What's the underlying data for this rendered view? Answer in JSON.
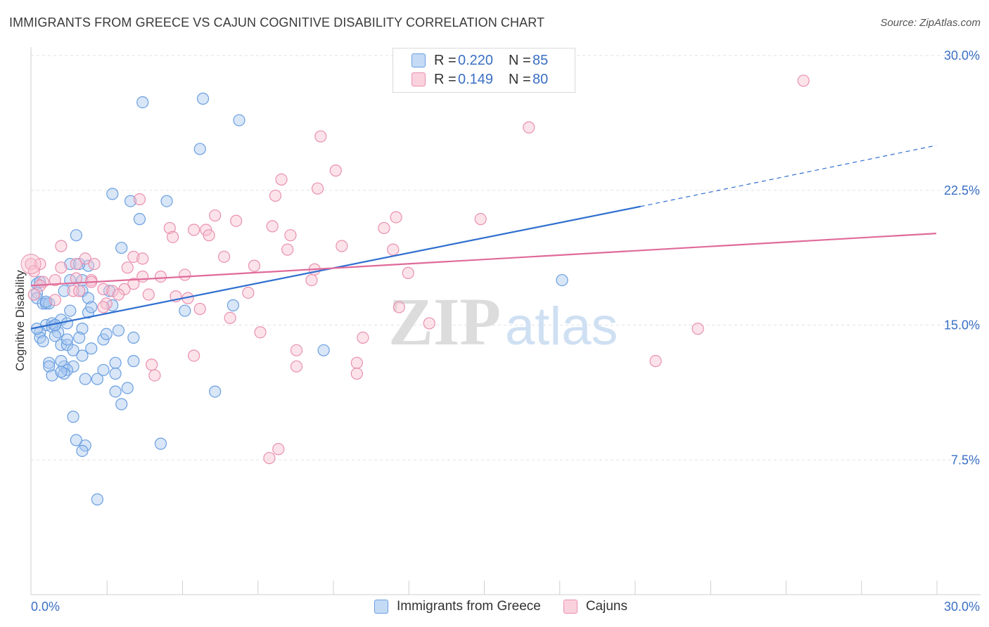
{
  "title": "IMMIGRANTS FROM GREECE VS CAJUN COGNITIVE DISABILITY CORRELATION CHART",
  "source": "Source: ZipAtlas.com",
  "watermark": {
    "zip": "ZIP",
    "atlas": "atlas"
  },
  "legend": {
    "rows": [
      {
        "r_label": "R =",
        "r_value": "0.220",
        "n_label": "N =",
        "n_value": "85",
        "color": "#a8c8f0",
        "border": "#6a9fe0"
      },
      {
        "r_label": "R =",
        "r_value": "0.149",
        "n_label": "N =",
        "n_value": "80",
        "color": "#f8c0d0",
        "border": "#e890b0"
      }
    ]
  },
  "bottom_legend": [
    {
      "label": "Immigrants from Greece",
      "color": "#a8c8f0",
      "border": "#6a9fe0"
    },
    {
      "label": "Cajuns",
      "color": "#f8c0d0",
      "border": "#e890b0"
    }
  ],
  "chart_data": {
    "type": "scatter",
    "title": "IMMIGRANTS FROM GREECE VS CAJUN COGNITIVE DISABILITY CORRELATION CHART",
    "xlabel": "",
    "ylabel": "Cognitive Disability",
    "xlim": [
      0,
      30
    ],
    "ylim": [
      0,
      30
    ],
    "x_tick_labels": [
      "0.0%",
      "30.0%"
    ],
    "y_ticks": [
      7.5,
      15.0,
      22.5,
      30.0
    ],
    "y_tick_labels": [
      "7.5%",
      "15.0%",
      "22.5%",
      "30.0%"
    ],
    "grid": true,
    "legend_position": "top-center",
    "series": [
      {
        "name": "Immigrants from Greece",
        "color": "#6a9fe0",
        "fill": "#a8c8f0",
        "trend": {
          "x": [
            0,
            20.2
          ],
          "y": [
            14.8,
            21.6
          ],
          "dashed_to": [
            30,
            25.0
          ],
          "color": "#2f6fcf"
        },
        "points": [
          [
            3.7,
            27.4
          ],
          [
            5.7,
            27.6
          ],
          [
            6.9,
            26.4
          ],
          [
            5.6,
            24.8
          ],
          [
            2.7,
            22.3
          ],
          [
            4.5,
            21.9
          ],
          [
            3.3,
            21.9
          ],
          [
            3.6,
            20.9
          ],
          [
            1.5,
            20.0
          ],
          [
            3.0,
            19.3
          ],
          [
            1.3,
            18.4
          ],
          [
            1.9,
            18.3
          ],
          [
            1.6,
            18.4
          ],
          [
            0.2,
            17.3
          ],
          [
            0.3,
            17.4
          ],
          [
            1.3,
            17.5
          ],
          [
            1.7,
            17.5
          ],
          [
            0.2,
            16.8
          ],
          [
            0.2,
            16.5
          ],
          [
            1.1,
            16.9
          ],
          [
            1.7,
            16.9
          ],
          [
            2.6,
            16.9
          ],
          [
            0.4,
            16.2
          ],
          [
            0.5,
            16.2
          ],
          [
            0.6,
            16.2
          ],
          [
            0.5,
            16.3
          ],
          [
            1.9,
            16.5
          ],
          [
            2.7,
            16.1
          ],
          [
            6.7,
            16.1
          ],
          [
            1.3,
            15.8
          ],
          [
            1.9,
            15.7
          ],
          [
            5.1,
            15.8
          ],
          [
            0.5,
            15.0
          ],
          [
            0.7,
            15.1
          ],
          [
            0.8,
            15.0
          ],
          [
            1.0,
            15.3
          ],
          [
            1.2,
            15.1
          ],
          [
            0.7,
            14.9
          ],
          [
            0.3,
            14.6
          ],
          [
            0.9,
            14.6
          ],
          [
            1.7,
            14.8
          ],
          [
            2.9,
            14.7
          ],
          [
            0.3,
            14.3
          ],
          [
            0.4,
            14.1
          ],
          [
            0.8,
            14.4
          ],
          [
            1.6,
            14.3
          ],
          [
            2.4,
            14.2
          ],
          [
            3.4,
            14.3
          ],
          [
            1.0,
            13.9
          ],
          [
            1.2,
            13.9
          ],
          [
            2.0,
            13.7
          ],
          [
            1.4,
            13.6
          ],
          [
            1.7,
            13.3
          ],
          [
            0.6,
            12.9
          ],
          [
            0.6,
            12.7
          ],
          [
            1.1,
            12.7
          ],
          [
            1.4,
            12.7
          ],
          [
            2.8,
            12.9
          ],
          [
            1.2,
            12.5
          ],
          [
            1.1,
            12.3
          ],
          [
            0.7,
            12.2
          ],
          [
            1.0,
            12.4
          ],
          [
            2.4,
            12.5
          ],
          [
            2.8,
            12.3
          ],
          [
            1.8,
            12.0
          ],
          [
            2.2,
            12.0
          ],
          [
            3.2,
            11.5
          ],
          [
            6.1,
            11.3
          ],
          [
            2.8,
            11.3
          ],
          [
            3.0,
            10.6
          ],
          [
            1.4,
            9.9
          ],
          [
            1.5,
            8.6
          ],
          [
            1.8,
            8.3
          ],
          [
            1.7,
            8.0
          ],
          [
            4.3,
            8.4
          ],
          [
            2.2,
            5.3
          ],
          [
            17.6,
            17.5
          ],
          [
            9.7,
            13.6
          ],
          [
            0.2,
            14.8
          ],
          [
            1.0,
            13.0
          ],
          [
            2.5,
            14.5
          ],
          [
            1.2,
            14.2
          ],
          [
            0.8,
            15.0
          ],
          [
            3.4,
            13.0
          ],
          [
            2.0,
            16.0
          ]
        ]
      },
      {
        "name": "Cajuns",
        "color": "#e890b0",
        "fill": "#f8c0d0",
        "trend": {
          "x": [
            0,
            30
          ],
          "y": [
            17.2,
            20.1
          ],
          "color": "#e06a9a"
        },
        "points": [
          [
            25.6,
            28.6
          ],
          [
            16.5,
            26.0
          ],
          [
            9.6,
            25.5
          ],
          [
            10.1,
            23.6
          ],
          [
            9.5,
            22.6
          ],
          [
            8.3,
            23.1
          ],
          [
            8.1,
            22.2
          ],
          [
            3.6,
            22.0
          ],
          [
            6.1,
            21.1
          ],
          [
            6.8,
            20.8
          ],
          [
            11.7,
            20.4
          ],
          [
            12.1,
            21.0
          ],
          [
            14.9,
            20.9
          ],
          [
            4.6,
            20.4
          ],
          [
            5.4,
            20.3
          ],
          [
            5.8,
            20.3
          ],
          [
            8.0,
            20.5
          ],
          [
            8.6,
            20.0
          ],
          [
            4.7,
            19.9
          ],
          [
            5.9,
            20.0
          ],
          [
            1.0,
            19.4
          ],
          [
            10.3,
            19.4
          ],
          [
            8.5,
            19.2
          ],
          [
            12.0,
            19.2
          ],
          [
            6.4,
            18.8
          ],
          [
            3.4,
            18.8
          ],
          [
            1.8,
            18.7
          ],
          [
            3.7,
            18.7
          ],
          [
            0.3,
            18.4
          ],
          [
            1.0,
            18.2
          ],
          [
            1.5,
            18.4
          ],
          [
            2.1,
            18.4
          ],
          [
            3.2,
            18.2
          ],
          [
            7.4,
            18.3
          ],
          [
            9.4,
            18.1
          ],
          [
            12.5,
            17.9
          ],
          [
            4.3,
            17.7
          ],
          [
            5.1,
            17.8
          ],
          [
            3.7,
            17.7
          ],
          [
            0.8,
            17.5
          ],
          [
            1.5,
            17.6
          ],
          [
            2.0,
            17.5
          ],
          [
            9.3,
            17.5
          ],
          [
            0.4,
            17.4
          ],
          [
            0.3,
            17.2
          ],
          [
            2.0,
            17.4
          ],
          [
            3.4,
            17.3
          ],
          [
            2.4,
            17.0
          ],
          [
            2.7,
            16.9
          ],
          [
            3.1,
            17.0
          ],
          [
            1.4,
            16.9
          ],
          [
            7.2,
            16.8
          ],
          [
            3.9,
            16.7
          ],
          [
            4.8,
            16.6
          ],
          [
            5.2,
            16.5
          ],
          [
            0.8,
            16.4
          ],
          [
            0.1,
            16.7
          ],
          [
            2.5,
            16.2
          ],
          [
            2.4,
            16.0
          ],
          [
            12.2,
            16.0
          ],
          [
            5.6,
            15.9
          ],
          [
            6.6,
            15.4
          ],
          [
            13.2,
            15.1
          ],
          [
            22.1,
            14.8
          ],
          [
            7.6,
            14.6
          ],
          [
            11.0,
            14.3
          ],
          [
            8.8,
            13.6
          ],
          [
            5.4,
            13.3
          ],
          [
            20.7,
            13.0
          ],
          [
            4.0,
            12.8
          ],
          [
            8.8,
            12.7
          ],
          [
            10.8,
            12.9
          ],
          [
            4.1,
            12.2
          ],
          [
            10.8,
            12.3
          ],
          [
            8.2,
            8.1
          ],
          [
            7.9,
            7.6
          ],
          [
            0.0,
            18.4
          ],
          [
            0.1,
            18.0
          ],
          [
            2.9,
            16.7
          ],
          [
            1.6,
            16.9
          ]
        ]
      }
    ]
  }
}
